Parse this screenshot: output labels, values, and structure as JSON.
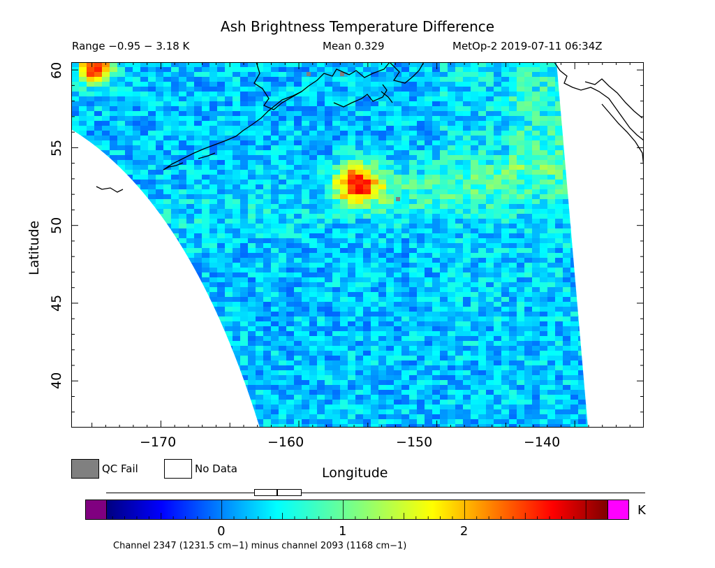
{
  "header": {
    "title": "Ash Brightness Temperature Difference",
    "range": "Range −0.95 − 3.18 K",
    "mean": "Mean 0.329",
    "satellite_time": "MetOp-2 2019-07-11 06:34Z"
  },
  "map": {
    "x_axis_label": "Longitude",
    "y_axis_label": "Latitude",
    "x_ticks": [
      "−170",
      "−160",
      "−150",
      "−140"
    ],
    "y_ticks": [
      "60",
      "55",
      "50",
      "45",
      "40"
    ],
    "lon_range": [
      -176.5,
      -135
    ],
    "lat_range": [
      37,
      60.5
    ],
    "hotspot": {
      "lon": -156,
      "lat": 52.8,
      "peak_value_K": 2.6
    },
    "hotspot_far_corner": {
      "lon": -175,
      "lat": 60.3,
      "peak_value_K": 2.6
    },
    "colors": {
      "no_data": "#ffffff",
      "qc_fail": "#808080",
      "coastline": "#000000"
    }
  },
  "legend": {
    "qc_fail_label": "QC Fail",
    "no_data_label": "No Data"
  },
  "colorbar": {
    "unit": "K",
    "ticks": [
      "0",
      "1",
      "2"
    ],
    "value_range": [
      -0.95,
      3.18
    ],
    "low_overflow_color": "#800080",
    "high_overflow_color": "#ff00ff",
    "caption": "Channel 2347 (1231.5 cm−1) minus channel 2093 (1168 cm−1)"
  }
}
